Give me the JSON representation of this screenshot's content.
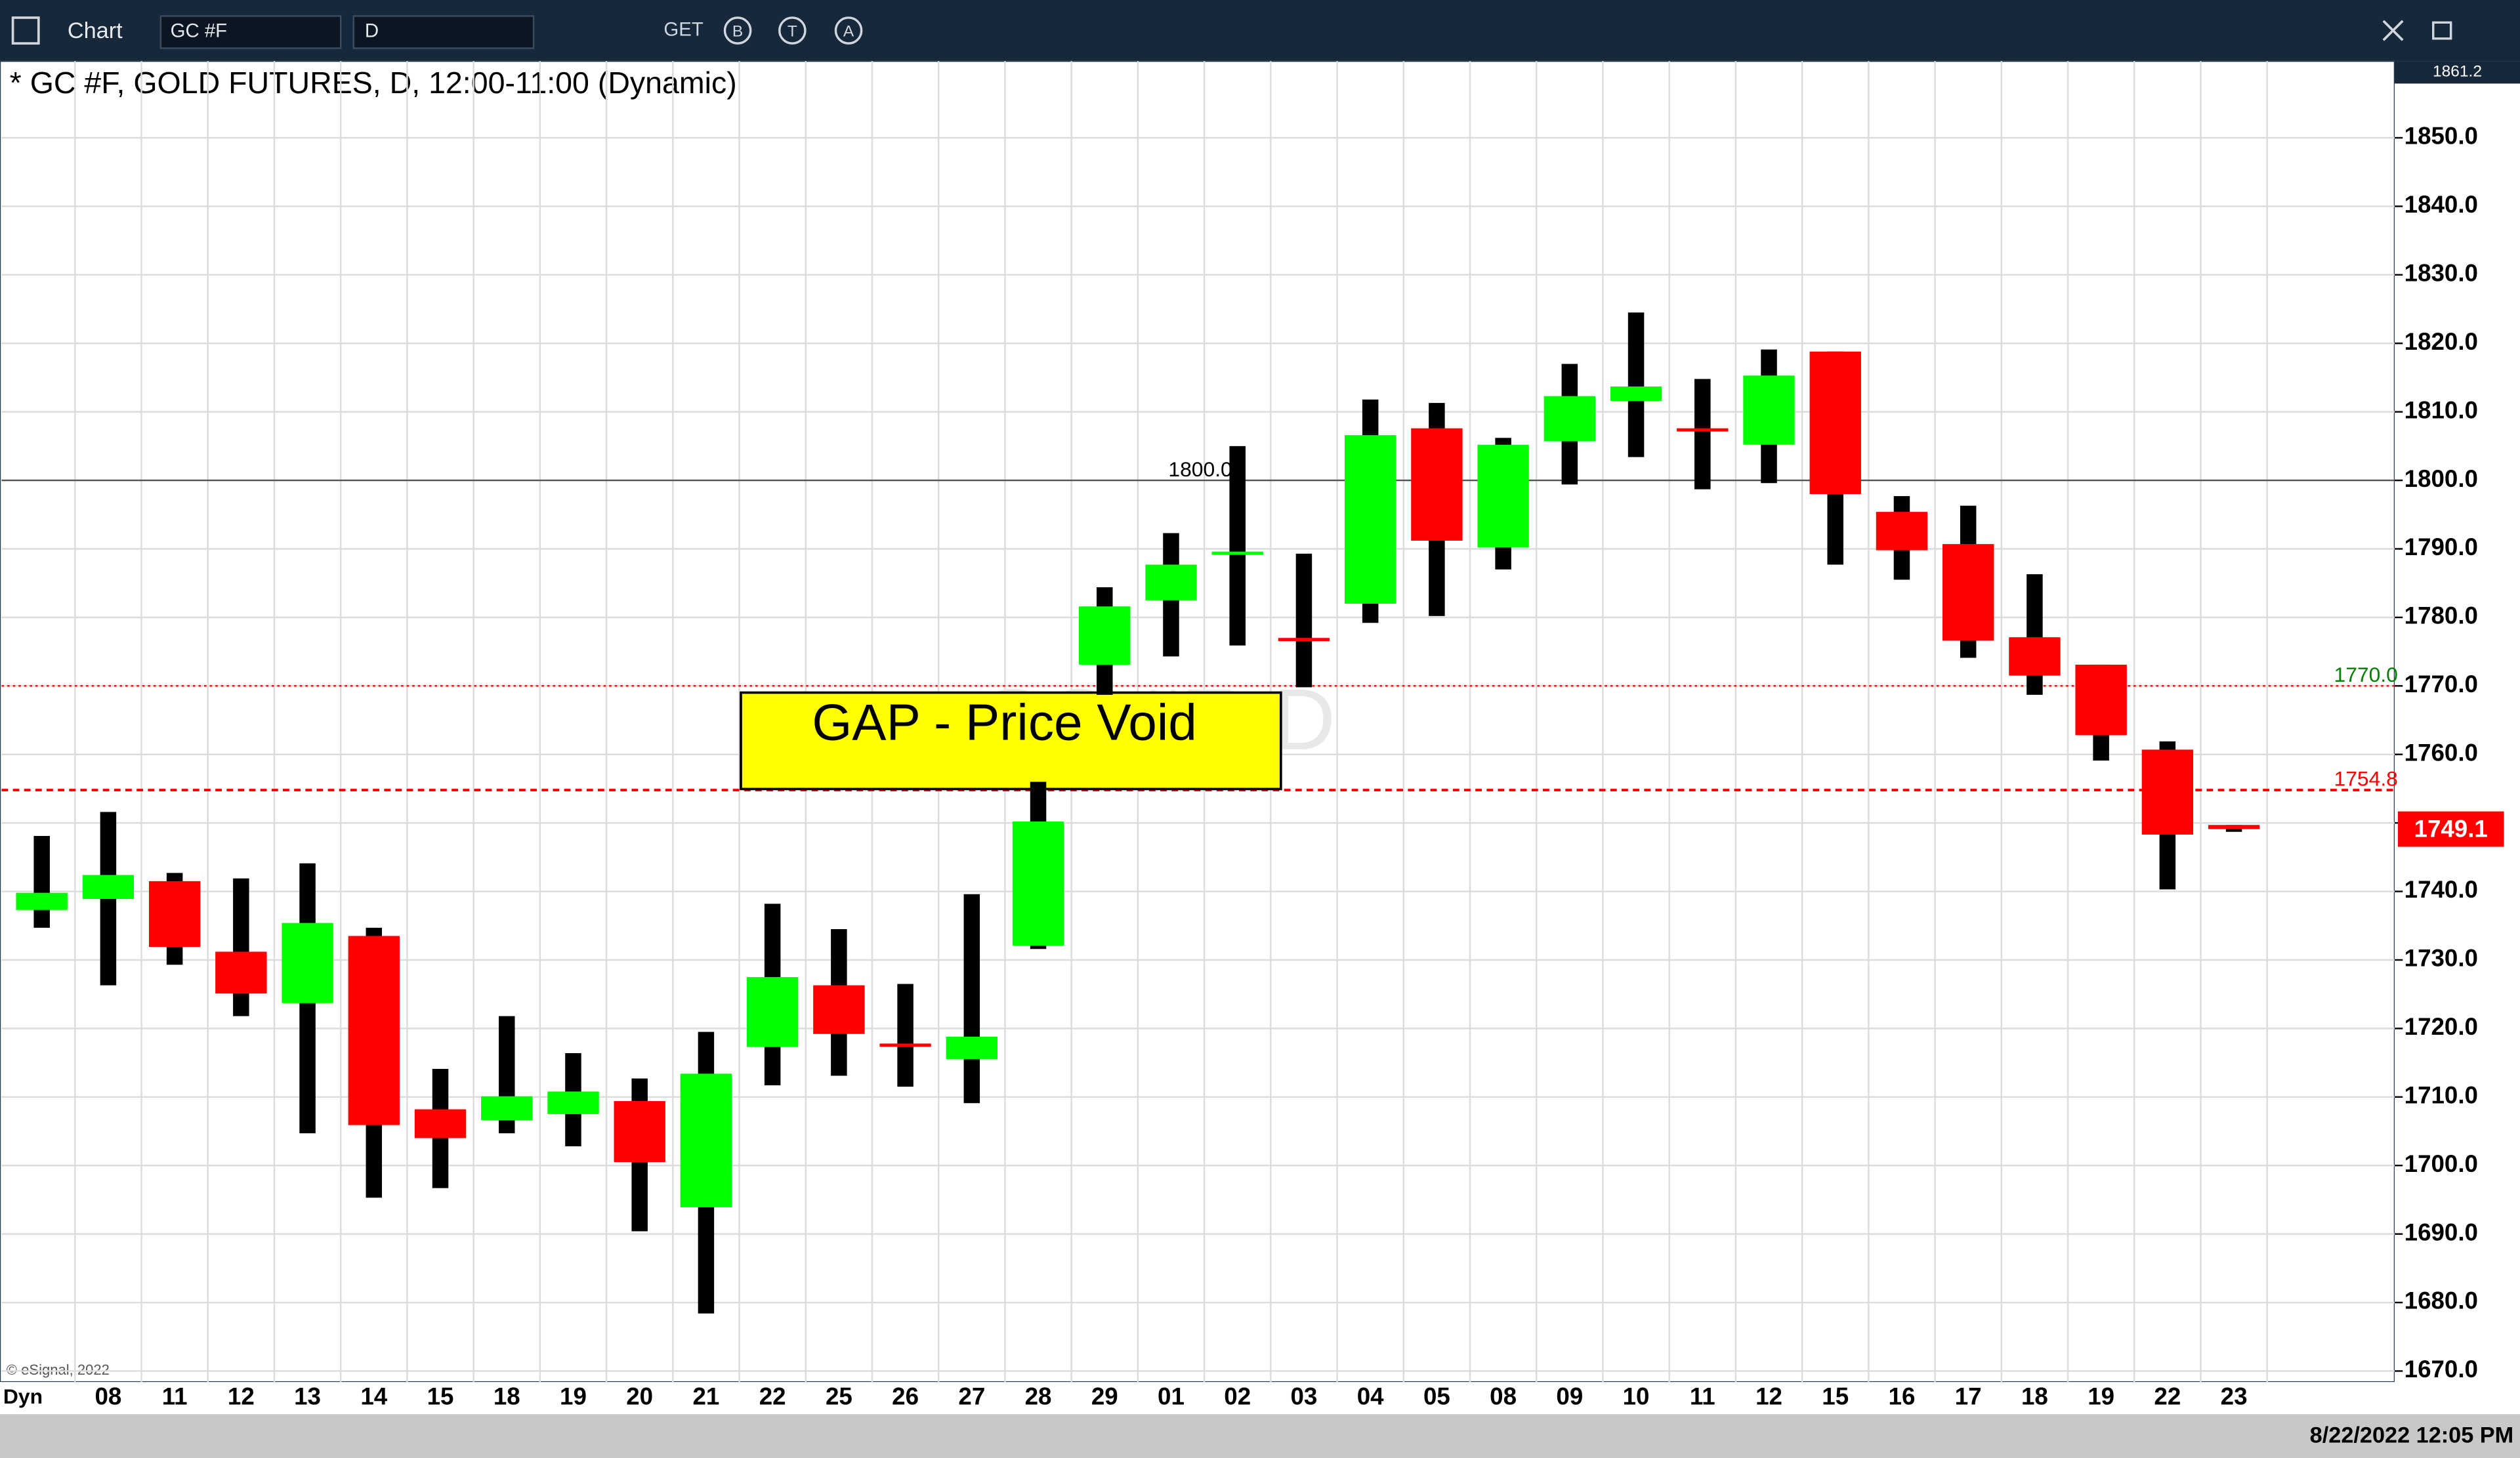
{
  "toolbar": {
    "title": "Chart",
    "symbol": "GC #F",
    "interval": "D",
    "get": "GET",
    "icons": [
      "B",
      "T",
      "A"
    ]
  },
  "chart_data": {
    "type": "candlestick",
    "title": "* GC #F, GOLD FUTURES, D, 12:00-11:00 (Dynamic)",
    "watermark": "GC #F, D",
    "categories": [
      null,
      "08",
      "11",
      "12",
      "13",
      "14",
      "15",
      "18",
      "19",
      "20",
      "21",
      "22",
      "25",
      "26",
      "27",
      "28",
      "29",
      "01",
      "02",
      "03",
      "04",
      "05",
      "08",
      "09",
      "10",
      "11",
      "12",
      "15",
      "16",
      "17",
      "18",
      "19",
      "22",
      "23"
    ],
    "open": [
      1737.3,
      1738.9,
      1741.5,
      1731.2,
      1723.7,
      1733.5,
      1708.2,
      1706.6,
      1707.5,
      1709.4,
      1693.9,
      1717.3,
      1726.3,
      1717.8,
      1715.5,
      1732.1,
      1773.1,
      1782.5,
      1789.3,
      1777.0,
      1782.0,
      1807.6,
      1790.2,
      1805.7,
      1811.6,
      1807.6,
      1805.2,
      1818.8,
      1795.4,
      1790.7,
      1777.1,
      1773.1,
      1760.7,
      1749.7
    ],
    "high": [
      1748.1,
      1751.6,
      1742.7,
      1741.9,
      1744.1,
      1734.7,
      1714.1,
      1721.8,
      1716.4,
      1712.7,
      1719.5,
      1738.2,
      1734.5,
      1726.5,
      1739.6,
      1756.0,
      1784.4,
      1792.3,
      1805.0,
      1789.3,
      1811.8,
      1811.3,
      1806.2,
      1817.0,
      1824.5,
      1814.8,
      1819.1,
      1818.8,
      1797.7,
      1796.3,
      1786.3,
      1773.1,
      1761.9,
      1749.7
    ],
    "low": [
      1734.7,
      1726.3,
      1729.3,
      1721.8,
      1704.7,
      1695.3,
      1696.7,
      1704.7,
      1702.8,
      1690.4,
      1678.4,
      1711.7,
      1713.1,
      1711.5,
      1709.1,
      1731.6,
      1768.7,
      1774.3,
      1775.9,
      1769.8,
      1779.2,
      1780.2,
      1787.0,
      1799.4,
      1803.4,
      1798.7,
      1799.6,
      1787.7,
      1785.5,
      1774.1,
      1768.7,
      1759.1,
      1740.3,
      1748.7
    ],
    "close": [
      1739.8,
      1742.4,
      1731.9,
      1725.1,
      1735.4,
      1705.9,
      1704.0,
      1710.1,
      1710.8,
      1700.5,
      1713.4,
      1727.5,
      1719.2,
      1717.6,
      1718.8,
      1750.2,
      1781.6,
      1787.7,
      1789.6,
      1776.8,
      1806.6,
      1791.2,
      1805.2,
      1812.3,
      1813.7,
      1807.4,
      1815.3,
      1798.0,
      1789.8,
      1776.6,
      1771.5,
      1762.8,
      1748.3,
      1749.1
    ],
    "up_color": "#00ff00",
    "down_color": "#ff0000",
    "ylim": [
      1668.4,
      1861.2
    ],
    "yticks": [
      {
        "value": 1670,
        "label": "1670.0"
      },
      {
        "value": 1680,
        "label": "1680.0"
      },
      {
        "value": 1690,
        "label": "1690.0"
      },
      {
        "value": 1700,
        "label": "1700.0"
      },
      {
        "value": 1710,
        "label": "1710.0"
      },
      {
        "value": 1720,
        "label": "1720.0"
      },
      {
        "value": 1730,
        "label": "1730.0"
      },
      {
        "value": 1740,
        "label": "1740.0"
      },
      {
        "value": 1750,
        "label": "1750.0"
      },
      {
        "value": 1760,
        "label": "1760.0"
      },
      {
        "value": 1770,
        "label": "1770.0"
      },
      {
        "value": 1780,
        "label": "1780.0"
      },
      {
        "value": 1790,
        "label": "1790.0"
      },
      {
        "value": 1800,
        "label": "1800.0"
      },
      {
        "value": 1810,
        "label": "1810.0"
      },
      {
        "value": 1820,
        "label": "1820.0"
      },
      {
        "value": 1830,
        "label": "1830.0"
      },
      {
        "value": 1840,
        "label": "1840.0"
      },
      {
        "value": 1850,
        "label": "1850.0"
      }
    ],
    "grid": true,
    "levels": [
      {
        "value": 1800,
        "label": "1800.0",
        "color": "#555555",
        "label_color": "#000000",
        "style": "solid"
      },
      {
        "value": 1770,
        "label": "1770.0",
        "color": "#ff0000",
        "label_color": "#008000",
        "style": "dotted"
      },
      {
        "value": 1754.8,
        "label": "1754.8",
        "color": "#ff0000",
        "label_color": "#ff0000",
        "style": "dashed"
      }
    ],
    "annotations": [
      {
        "text": "GAP - Price Void",
        "color": "#ffff00"
      }
    ]
  },
  "footer": {
    "mode": "Dyn",
    "copyright": "© eSignal, 2022",
    "datetime": "8/22/2022 12:05 PM"
  }
}
